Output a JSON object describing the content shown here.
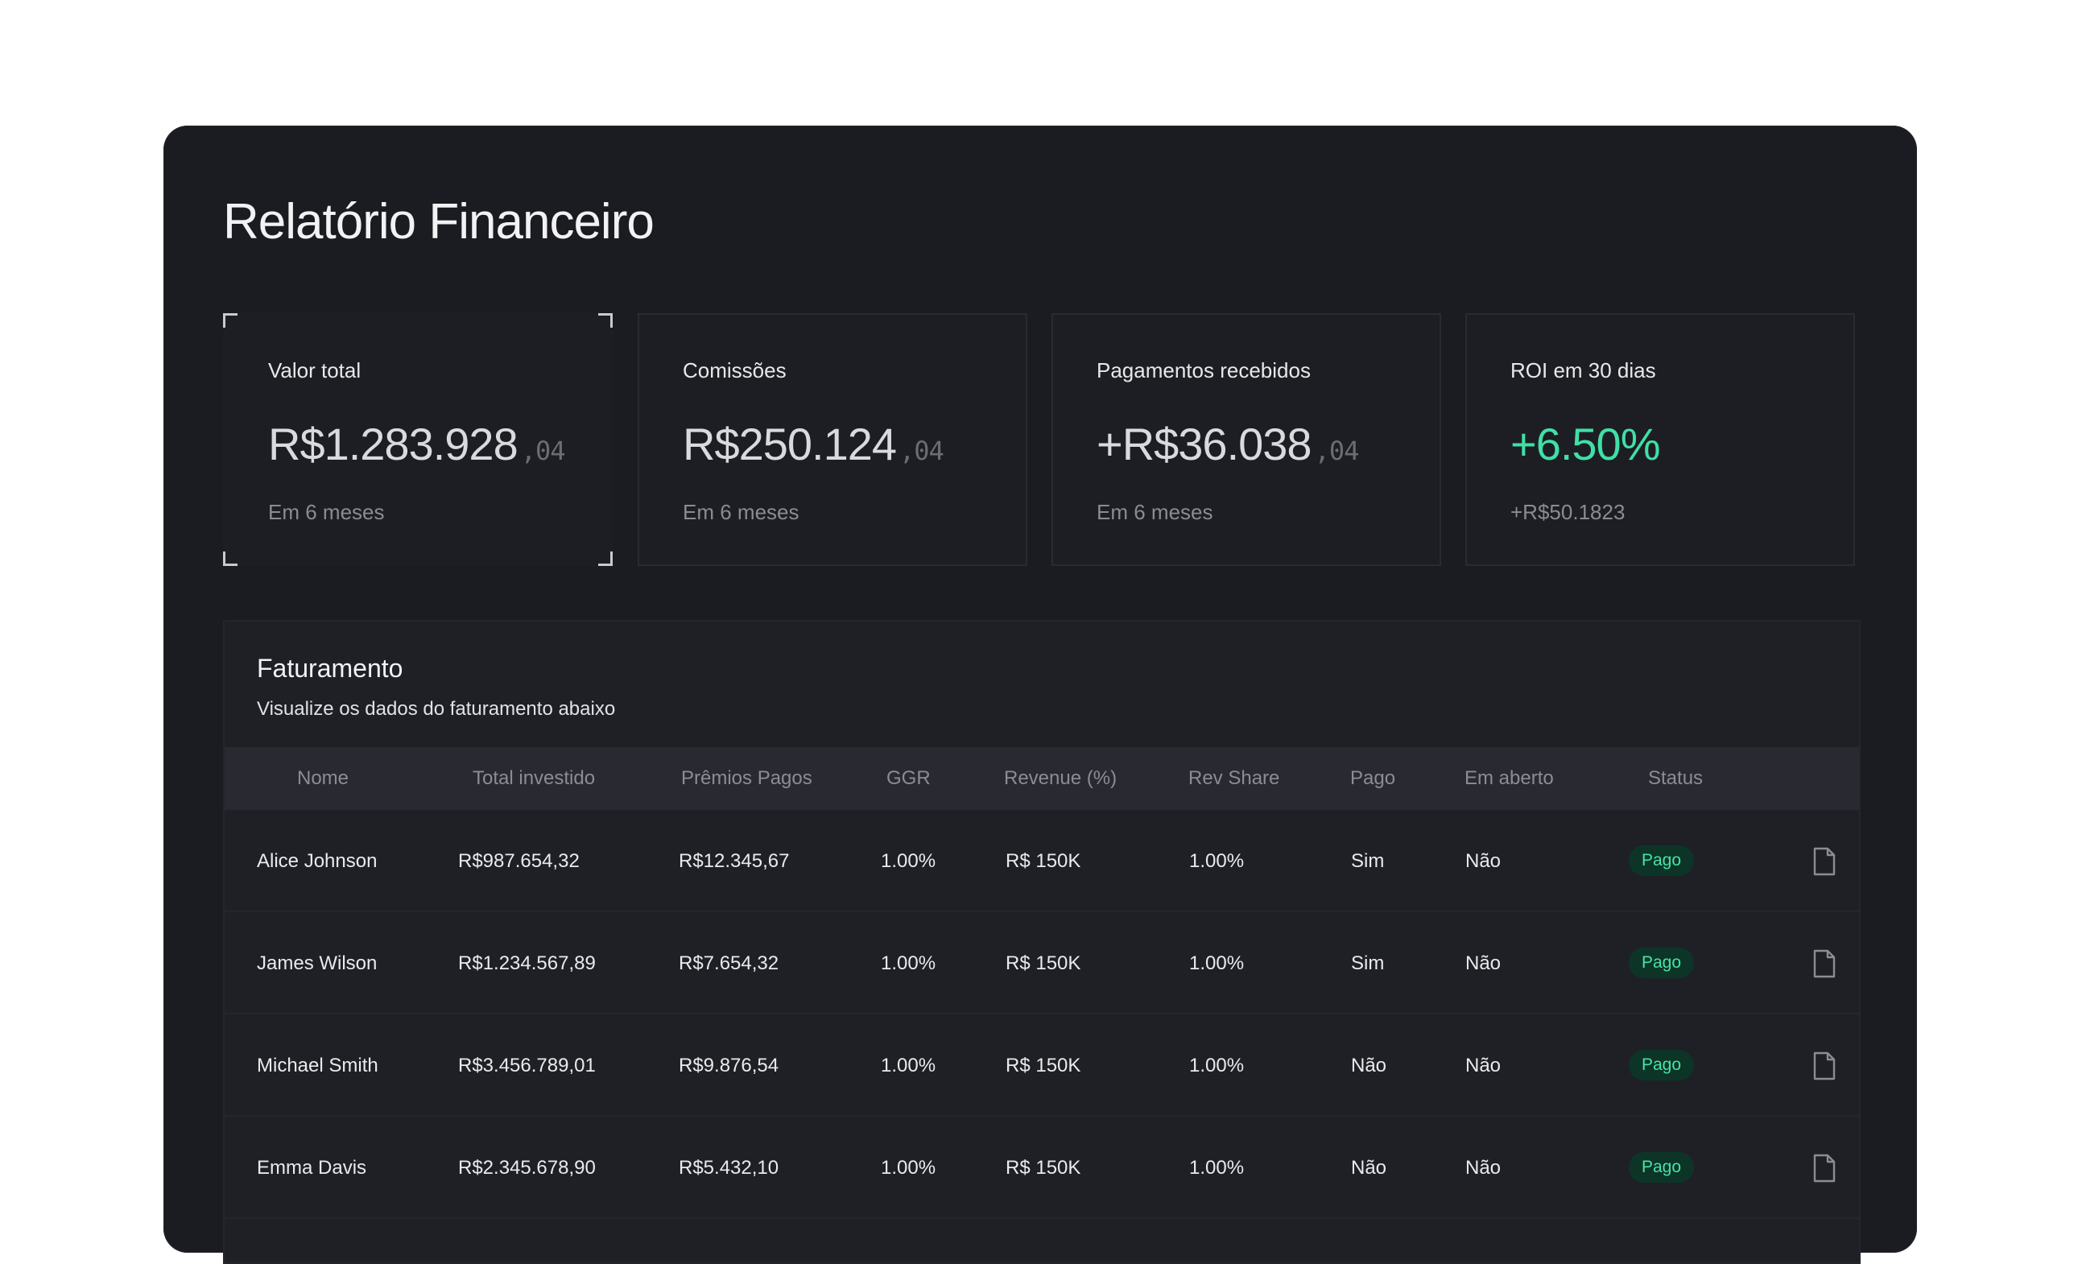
{
  "page": {
    "title": "Relatório Financeiro"
  },
  "cards": [
    {
      "label": "Valor total",
      "value": "R$1.283.928",
      "cents": ",04",
      "subtitle": "Em 6 meses"
    },
    {
      "label": "Comissões",
      "value": "R$250.124",
      "cents": ",04",
      "subtitle": "Em 6 meses"
    },
    {
      "label": "Pagamentos recebidos",
      "value": "+R$36.038",
      "cents": ",04",
      "subtitle": "Em 6 meses"
    },
    {
      "label": "ROI em 30 dias",
      "value": "+6.50%",
      "cents": "",
      "subtitle": "+R$50.1823"
    }
  ],
  "billing": {
    "title": "Faturamento",
    "subtitle": "Visualize os dados do faturamento abaixo",
    "columns": [
      "Nome",
      "Total investido",
      "Prêmios Pagos",
      "GGR",
      "Revenue (%)",
      "Rev Share",
      "Pago",
      "Em aberto",
      "Status"
    ],
    "rows": [
      {
        "nome": "Alice Johnson",
        "total": "R$987.654,32",
        "premios": "R$12.345,67",
        "ggr": "1.00%",
        "revenue": "R$ 150K",
        "revshare": "1.00%",
        "pago": "Sim",
        "aberto": "Não",
        "status": "Pago"
      },
      {
        "nome": "James Wilson",
        "total": "R$1.234.567,89",
        "premios": "R$7.654,32",
        "ggr": "1.00%",
        "revenue": "R$ 150K",
        "revshare": "1.00%",
        "pago": "Sim",
        "aberto": "Não",
        "status": "Pago"
      },
      {
        "nome": "Michael Smith",
        "total": "R$3.456.789,01",
        "premios": "R$9.876,54",
        "ggr": "1.00%",
        "revenue": "R$ 150K",
        "revshare": "1.00%",
        "pago": "Não",
        "aberto": "Não",
        "status": "Pago"
      },
      {
        "nome": "Emma Davis",
        "total": "R$2.345.678,90",
        "premios": "R$5.432,10",
        "ggr": "1.00%",
        "revenue": "R$ 150K",
        "revshare": "1.00%",
        "pago": "Não",
        "aberto": "Não",
        "status": "Pago"
      }
    ]
  },
  "colors": {
    "accent_green": "#3fe0a6",
    "background": "#1b1c21"
  },
  "icons": {
    "row_action": "document-icon"
  }
}
